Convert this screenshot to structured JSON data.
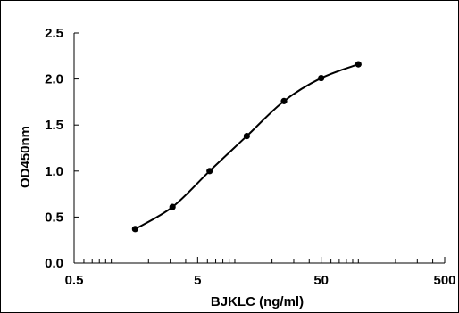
{
  "chart_data": {
    "type": "line",
    "title": "",
    "xlabel": "BJKLC (ng/ml)",
    "ylabel": "OD450nm",
    "x_scale": "log",
    "xlim": [
      0.5,
      500
    ],
    "ylim": [
      0,
      2.5
    ],
    "x_ticks": [
      "0.5",
      "5",
      "50",
      "500"
    ],
    "y_ticks": [
      "0.0",
      "0.5",
      "1.0",
      "1.5",
      "2.0",
      "2.5"
    ],
    "grid": false,
    "legend": "none",
    "markers": true,
    "smooth": true,
    "series_color": "#000000",
    "series": [
      {
        "x": [
          1.56,
          3.13,
          6.25,
          12.5,
          25,
          50,
          100
        ],
        "values": [
          0.37,
          0.61,
          1.0,
          1.38,
          1.76,
          2.01,
          2.16
        ]
      }
    ]
  }
}
